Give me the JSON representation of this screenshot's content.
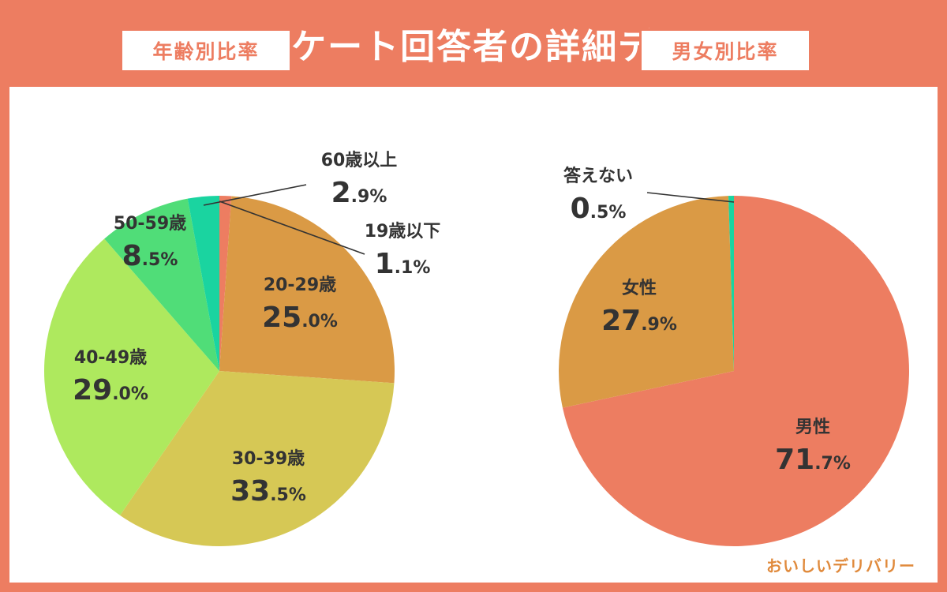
{
  "title": "アンケート回答者の詳細データ",
  "colors": {
    "accent": "#ED7D61",
    "background": "#ffffff",
    "text": "#333333",
    "leader": "#333333"
  },
  "logo": {
    "text": "おいしいデリバリー"
  },
  "chart_data": [
    {
      "type": "pie",
      "title": "年齢別比率",
      "start_angle_deg": 0,
      "direction": "clockwise",
      "slices": [
        {
          "label": "19歳以下",
          "value": 1.1,
          "value_label": "1.1%",
          "big": "1",
          "small": ".1%",
          "color": "#ED7D61"
        },
        {
          "label": "20-29歳",
          "value": 25.0,
          "value_label": "25.0%",
          "big": "25",
          "small": ".0%",
          "color": "#DA9A45"
        },
        {
          "label": "30-39歳",
          "value": 33.5,
          "value_label": "33.5%",
          "big": "33",
          "small": ".5%",
          "color": "#D6C855"
        },
        {
          "label": "40-49歳",
          "value": 29.0,
          "value_label": "29.0%",
          "big": "29",
          "small": ".0%",
          "color": "#AEE95E"
        },
        {
          "label": "50-59歳",
          "value": 8.5,
          "value_label": "8.5%",
          "big": "8",
          "small": ".5%",
          "color": "#50DD78"
        },
        {
          "label": "60歳以上",
          "value": 2.9,
          "value_label": "2.9%",
          "big": "2",
          "small": ".9%",
          "color": "#1AD4A0"
        }
      ]
    },
    {
      "type": "pie",
      "title": "男女別比率",
      "start_angle_deg": 0,
      "direction": "clockwise",
      "slices": [
        {
          "label": "男性",
          "value": 71.7,
          "value_label": "71.7%",
          "big": "71",
          "small": ".7%",
          "color": "#ED7D61"
        },
        {
          "label": "女性",
          "value": 27.9,
          "value_label": "27.9%",
          "big": "27",
          "small": ".9%",
          "color": "#DA9A45"
        },
        {
          "label": "答えない",
          "value": 0.5,
          "value_label": "0.5%",
          "big": "0",
          "small": ".5%",
          "color": "#1AD4A0"
        }
      ]
    }
  ]
}
